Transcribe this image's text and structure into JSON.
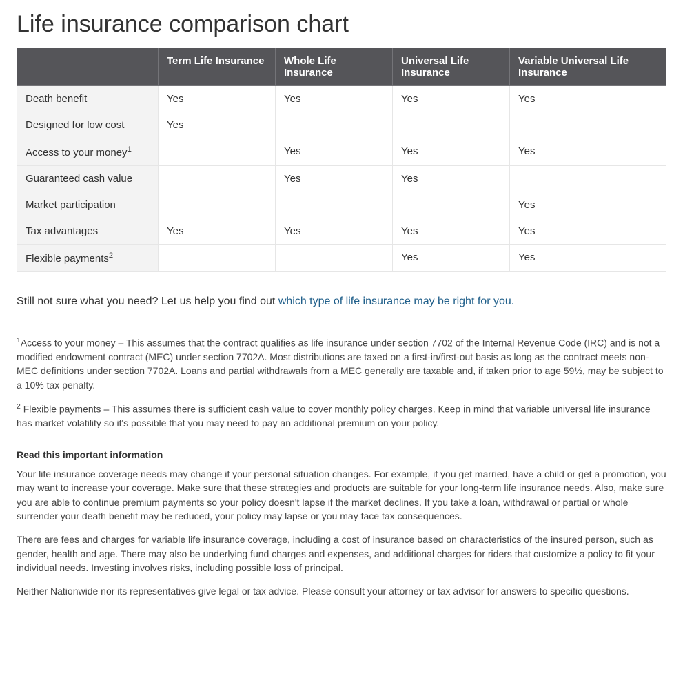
{
  "title": "Life insurance comparison chart",
  "table": {
    "header_bg": "#555559",
    "header_fg": "#ffffff",
    "border_color": "#e6e6e6",
    "rowhead_bg": "#f3f3f3",
    "columns": [
      "Term Life Insurance",
      "Whole Life Insurance",
      "Universal Life Insurance",
      "Variable Universal Life Insurance"
    ],
    "rows": [
      {
        "label": "Death benefit",
        "sup": "",
        "cells": [
          "Yes",
          "Yes",
          "Yes",
          "Yes"
        ]
      },
      {
        "label": "Designed for low cost",
        "sup": "",
        "cells": [
          "Yes",
          "",
          "",
          ""
        ]
      },
      {
        "label": "Access to your money",
        "sup": "1",
        "cells": [
          "",
          "Yes",
          "Yes",
          "Yes"
        ]
      },
      {
        "label": "Guaranteed cash value",
        "sup": "",
        "cells": [
          "",
          "Yes",
          "Yes",
          ""
        ]
      },
      {
        "label": "Market participation",
        "sup": "",
        "cells": [
          "",
          "",
          "",
          "Yes"
        ]
      },
      {
        "label": "Tax advantages",
        "sup": "",
        "cells": [
          "Yes",
          "Yes",
          "Yes",
          "Yes"
        ]
      },
      {
        "label": "Flexible payments",
        "sup": "2",
        "cells": [
          "",
          "",
          "Yes",
          "Yes"
        ]
      }
    ]
  },
  "lead": {
    "prefix": "Still not sure what you need? Let us help you find out ",
    "link_text": "which type of life insurance may be right for you.",
    "link_color": "#205f8a"
  },
  "footnotes": [
    {
      "sup": "1",
      "text": "Access to your money – This assumes that the contract qualifies as life insurance under section 7702 of the Internal Revenue Code (IRC) and is not a modified endowment contract (MEC) under section 7702A. Most distributions are taxed on a first-in/first-out basis as long as the contract meets non-MEC definitions under section 7702A. Loans and partial withdrawals from a MEC generally are taxable and, if taken prior to age 59½, may be subject to a 10% tax penalty."
    },
    {
      "sup": "2",
      "text": " Flexible payments – This assumes there is sufficient cash value to cover monthly policy charges. Keep in mind that variable universal life insurance has market volatility so it's possible that you may need to pay an additional premium on your policy."
    }
  ],
  "disclosure_heading": "Read this important information",
  "disclosure": [
    "Your life insurance coverage needs may change if your personal situation changes. For example, if you get married, have a child or get a promotion, you may want to increase your coverage. Make sure that these strategies and products are suitable for your long-term life insurance needs. Also, make sure you are able to continue premium payments so your policy doesn't lapse if the market declines. If you take a loan, withdrawal or partial or whole surrender your death benefit may be reduced, your policy may lapse or you may face tax consequences.",
    "There are fees and charges for variable life insurance coverage, including a cost of insurance based on characteristics of the insured person, such as gender, health and age. There may also be underlying fund charges and expenses, and additional charges for riders that customize a policy to fit your individual needs. Investing involves risks, including possible loss of principal.",
    "Neither Nationwide nor its representatives give legal or tax advice. Please consult your attorney or tax advisor for answers to specific questions."
  ]
}
